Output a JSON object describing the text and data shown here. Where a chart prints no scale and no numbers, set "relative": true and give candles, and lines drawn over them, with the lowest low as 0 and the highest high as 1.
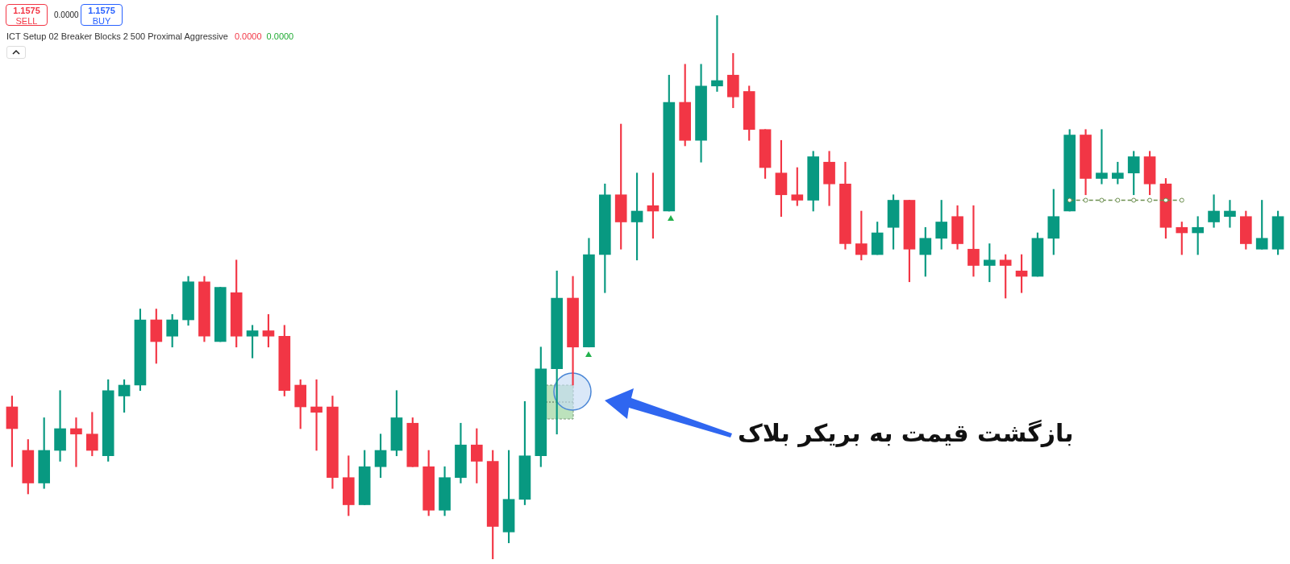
{
  "chart_data": {
    "type": "candlestick",
    "relative": true,
    "categories": [
      null,
      null,
      null,
      null,
      null,
      null,
      null,
      null,
      null,
      null,
      null,
      null,
      null,
      null,
      null,
      null,
      null,
      null,
      null,
      null,
      null,
      null,
      null,
      null,
      null,
      null,
      null,
      null,
      null,
      null,
      null,
      null,
      null,
      null,
      null,
      null,
      null,
      null,
      null,
      null,
      null,
      null,
      null,
      null,
      null,
      null,
      null,
      null,
      null,
      null,
      null,
      null,
      null,
      null,
      null,
      null,
      null,
      null,
      null,
      null,
      null,
      null,
      null,
      null,
      null,
      null,
      null,
      null,
      null,
      null,
      null,
      null,
      null,
      null,
      null,
      null,
      null,
      null,
      null,
      null
    ],
    "ohlc": [
      [
        0.28,
        0.3,
        0.17,
        0.24
      ],
      [
        0.2,
        0.22,
        0.12,
        0.14
      ],
      [
        0.14,
        0.26,
        0.13,
        0.2
      ],
      [
        0.2,
        0.31,
        0.18,
        0.24
      ],
      [
        0.24,
        0.26,
        0.17,
        0.23
      ],
      [
        0.23,
        0.27,
        0.19,
        0.2
      ],
      [
        0.19,
        0.33,
        0.18,
        0.31
      ],
      [
        0.3,
        0.33,
        0.27,
        0.32
      ],
      [
        0.32,
        0.46,
        0.31,
        0.44
      ],
      [
        0.44,
        0.46,
        0.36,
        0.4
      ],
      [
        0.41,
        0.45,
        0.39,
        0.44
      ],
      [
        0.44,
        0.52,
        0.43,
        0.51
      ],
      [
        0.51,
        0.52,
        0.4,
        0.41
      ],
      [
        0.4,
        0.5,
        0.4,
        0.5
      ],
      [
        0.49,
        0.55,
        0.39,
        0.41
      ],
      [
        0.41,
        0.43,
        0.37,
        0.42
      ],
      [
        0.42,
        0.45,
        0.39,
        0.41
      ],
      [
        0.41,
        0.43,
        0.3,
        0.31
      ],
      [
        0.32,
        0.33,
        0.24,
        0.28
      ],
      [
        0.28,
        0.33,
        0.2,
        0.27
      ],
      [
        0.28,
        0.3,
        0.13,
        0.15
      ],
      [
        0.15,
        0.19,
        0.08,
        0.1
      ],
      [
        0.1,
        0.2,
        0.1,
        0.17
      ],
      [
        0.17,
        0.23,
        0.15,
        0.2
      ],
      [
        0.2,
        0.31,
        0.19,
        0.26
      ],
      [
        0.25,
        0.26,
        0.17,
        0.17
      ],
      [
        0.17,
        0.2,
        0.08,
        0.09
      ],
      [
        0.09,
        0.17,
        0.08,
        0.15
      ],
      [
        0.15,
        0.25,
        0.14,
        0.21
      ],
      [
        0.21,
        0.24,
        0.14,
        0.18
      ],
      [
        0.18,
        0.2,
        0,
        0.06
      ],
      [
        0.05,
        0.2,
        0.03,
        0.11
      ],
      [
        0.11,
        0.29,
        0.1,
        0.19
      ],
      [
        0.19,
        0.39,
        0.17,
        0.35
      ],
      [
        0.35,
        0.53,
        0.23,
        0.48
      ],
      [
        0.48,
        0.52,
        0.32,
        0.39
      ],
      [
        0.39,
        0.59,
        0.39,
        0.56
      ],
      [
        0.56,
        0.69,
        0.49,
        0.67
      ],
      [
        0.67,
        0.8,
        0.57,
        0.62
      ],
      [
        0.62,
        0.71,
        0.55,
        0.64
      ],
      [
        0.65,
        0.71,
        0.59,
        0.64
      ],
      [
        0.64,
        0.89,
        0.64,
        0.84
      ],
      [
        0.84,
        0.91,
        0.76,
        0.77
      ],
      [
        0.77,
        0.91,
        0.73,
        0.87
      ],
      [
        0.87,
        1,
        0.86,
        0.88
      ],
      [
        0.89,
        0.93,
        0.83,
        0.85
      ],
      [
        0.86,
        0.87,
        0.77,
        0.79
      ],
      [
        0.79,
        0.79,
        0.7,
        0.72
      ],
      [
        0.71,
        0.77,
        0.63,
        0.67
      ],
      [
        0.67,
        0.72,
        0.65,
        0.66
      ],
      [
        0.66,
        0.75,
        0.64,
        0.74
      ],
      [
        0.73,
        0.75,
        0.65,
        0.69
      ],
      [
        0.69,
        0.73,
        0.57,
        0.58
      ],
      [
        0.58,
        0.64,
        0.55,
        0.56
      ],
      [
        0.56,
        0.62,
        0.56,
        0.6
      ],
      [
        0.61,
        0.67,
        0.57,
        0.66
      ],
      [
        0.66,
        0.66,
        0.51,
        0.57
      ],
      [
        0.56,
        0.61,
        0.52,
        0.59
      ],
      [
        0.59,
        0.66,
        0.57,
        0.62
      ],
      [
        0.63,
        0.65,
        0.57,
        0.58
      ],
      [
        0.57,
        0.65,
        0.52,
        0.54
      ],
      [
        0.54,
        0.58,
        0.51,
        0.55
      ],
      [
        0.55,
        0.56,
        0.48,
        0.54
      ],
      [
        0.53,
        0.56,
        0.49,
        0.52
      ],
      [
        0.52,
        0.6,
        0.52,
        0.59
      ],
      [
        0.59,
        0.68,
        0.56,
        0.63
      ],
      [
        0.64,
        0.79,
        0.64,
        0.78
      ],
      [
        0.78,
        0.79,
        0.67,
        0.7
      ],
      [
        0.7,
        0.79,
        0.69,
        0.71
      ],
      [
        0.7,
        0.73,
        0.69,
        0.71
      ],
      [
        0.71,
        0.75,
        0.67,
        0.74
      ],
      [
        0.74,
        0.75,
        0.67,
        0.69
      ],
      [
        0.69,
        0.7,
        0.59,
        0.61
      ],
      [
        0.61,
        0.62,
        0.56,
        0.6
      ],
      [
        0.6,
        0.63,
        0.56,
        0.61
      ],
      [
        0.62,
        0.67,
        0.61,
        0.64
      ],
      [
        0.63,
        0.66,
        0.61,
        0.64
      ],
      [
        0.63,
        0.64,
        0.57,
        0.58
      ],
      [
        0.57,
        0.66,
        0.57,
        0.59
      ],
      [
        0.57,
        0.64,
        0.56,
        0.63
      ]
    ],
    "colors": [
      "#f23645",
      "#f23645",
      "#089981",
      "#089981",
      "#f23645",
      "#f23645",
      "#089981",
      "#089981",
      "#089981",
      "#f23645",
      "#089981",
      "#089981",
      "#f23645",
      "#089981",
      "#f23645",
      "#089981",
      "#f23645",
      "#f23645",
      "#f23645",
      "#f23645",
      "#f23645",
      "#f23645",
      "#089981",
      "#089981",
      "#089981",
      "#f23645",
      "#f23645",
      "#089981",
      "#089981",
      "#f23645",
      "#f23645",
      "#089981",
      "#089981",
      "#089981",
      "#089981",
      "#f23645",
      "#089981",
      "#089981",
      "#f23645",
      "#089981",
      "#f23645",
      "#089981",
      "#f23645",
      "#089981",
      "#089981",
      "#f23645",
      "#f23645",
      "#f23645",
      "#f23645",
      "#f23645",
      "#089981",
      "#f23645",
      "#f23645",
      "#f23645",
      "#089981",
      "#089981",
      "#f23645",
      "#089981",
      "#089981",
      "#f23645",
      "#f23645",
      "#089981",
      "#f23645",
      "#f23645",
      "#089981",
      "#089981",
      "#089981",
      "#f23645",
      "#089981",
      "#089981",
      "#089981",
      "#f23645",
      "#f23645",
      "#f23645",
      "#089981",
      "#089981",
      "#089981",
      "#f23645",
      "#089981",
      "#089981"
    ],
    "series": [
      {
        "type": "line",
        "color": "#6b8e4e",
        "values": [
          null,
          null,
          null,
          null,
          null,
          null,
          null,
          null,
          null,
          null,
          null,
          null,
          null,
          null,
          null,
          null,
          null,
          null,
          null,
          null,
          null,
          null,
          null,
          null,
          null,
          null,
          null,
          null,
          null,
          null,
          null,
          null,
          null,
          null,
          null,
          null,
          null,
          null,
          null,
          null,
          null,
          null,
          null,
          null,
          null,
          null,
          null,
          null,
          null,
          null,
          null,
          null,
          null,
          null,
          null,
          null,
          null,
          null,
          null,
          null,
          null,
          null,
          null,
          null,
          null,
          null,
          0.66,
          0.66,
          0.66,
          0.66,
          0.66,
          0.66,
          0.66,
          0.66,
          null,
          null,
          null,
          null,
          null,
          null
        ]
      }
    ],
    "line_style": "dashed",
    "marker": "circle",
    "annotations": [
      "1.1575",
      "SELL",
      "0.0000",
      "1.1575",
      "BUY",
      "ICT Setup 02 Breaker Blocks 2 500 Proximal Aggressive",
      "0.0000",
      "0.0000",
      "بازگشت قیمت به بریکر بلاک"
    ]
  }
}
